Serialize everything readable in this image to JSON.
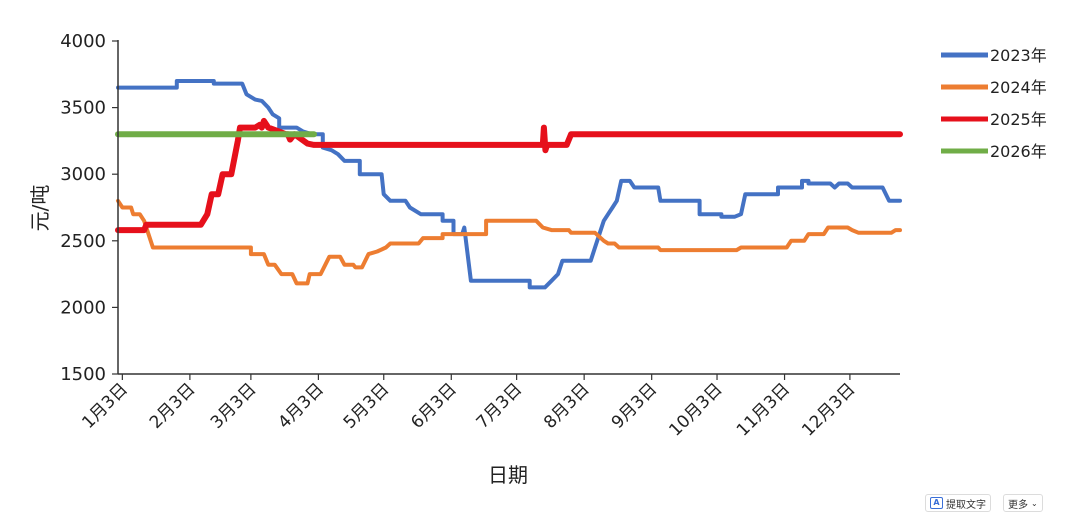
{
  "chart_data": {
    "type": "line",
    "title": "",
    "xlabel": "日期",
    "ylabel": "元/吨",
    "ylim": [
      1500,
      4000
    ],
    "yticks": [
      1500,
      2000,
      2500,
      3000,
      3500,
      4000
    ],
    "xlim": [
      1,
      360
    ],
    "xtick_labels": [
      "1月3日",
      "2月3日",
      "3月3日",
      "4月3日",
      "5月3日",
      "6月3日",
      "7月3日",
      "8月3日",
      "9月3日",
      "10月3日",
      "11月3日",
      "12月3日"
    ],
    "xtick_days": [
      3,
      34,
      62,
      93,
      123,
      154,
      184,
      215,
      246,
      276,
      307,
      337
    ],
    "legend_position": "right",
    "grid": false,
    "series": [
      {
        "name": "2023年",
        "color": "#4472c4",
        "points": [
          [
            1,
            3650
          ],
          [
            28,
            3650
          ],
          [
            28,
            3700
          ],
          [
            45,
            3700
          ],
          [
            45,
            3680
          ],
          [
            58,
            3680
          ],
          [
            60,
            3600
          ],
          [
            64,
            3560
          ],
          [
            67,
            3550
          ],
          [
            70,
            3500
          ],
          [
            72,
            3450
          ],
          [
            75,
            3420
          ],
          [
            75,
            3350
          ],
          [
            83,
            3350
          ],
          [
            86,
            3320
          ],
          [
            90,
            3300
          ],
          [
            95,
            3300
          ],
          [
            95,
            3200
          ],
          [
            99,
            3180
          ],
          [
            102,
            3150
          ],
          [
            105,
            3100
          ],
          [
            112,
            3100
          ],
          [
            112,
            3000
          ],
          [
            122,
            3000
          ],
          [
            123,
            2850
          ],
          [
            126,
            2800
          ],
          [
            133,
            2800
          ],
          [
            135,
            2750
          ],
          [
            140,
            2700
          ],
          [
            150,
            2700
          ],
          [
            150,
            2650
          ],
          [
            155,
            2650
          ],
          [
            155,
            2550
          ],
          [
            159,
            2550
          ],
          [
            160,
            2600
          ],
          [
            163,
            2200
          ],
          [
            190,
            2200
          ],
          [
            190,
            2150
          ],
          [
            197,
            2150
          ],
          [
            200,
            2200
          ],
          [
            203,
            2250
          ],
          [
            205,
            2350
          ],
          [
            218,
            2350
          ],
          [
            220,
            2450
          ],
          [
            222,
            2550
          ],
          [
            224,
            2650
          ],
          [
            226,
            2700
          ],
          [
            228,
            2750
          ],
          [
            230,
            2800
          ],
          [
            232,
            2950
          ],
          [
            236,
            2950
          ],
          [
            238,
            2900
          ],
          [
            249,
            2900
          ],
          [
            250,
            2800
          ],
          [
            268,
            2800
          ],
          [
            268,
            2700
          ],
          [
            278,
            2700
          ],
          [
            278,
            2680
          ],
          [
            284,
            2680
          ],
          [
            287,
            2700
          ],
          [
            289,
            2850
          ],
          [
            304,
            2850
          ],
          [
            304,
            2900
          ],
          [
            315,
            2900
          ],
          [
            315,
            2950
          ],
          [
            318,
            2950
          ],
          [
            318,
            2930
          ],
          [
            328,
            2930
          ],
          [
            330,
            2900
          ],
          [
            332,
            2930
          ],
          [
            336,
            2930
          ],
          [
            338,
            2900
          ],
          [
            352,
            2900
          ],
          [
            355,
            2800
          ],
          [
            360,
            2800
          ]
        ]
      },
      {
        "name": "2024年",
        "color": "#ed7d31",
        "points": [
          [
            1,
            2800
          ],
          [
            3,
            2750
          ],
          [
            7,
            2750
          ],
          [
            8,
            2700
          ],
          [
            11,
            2700
          ],
          [
            13,
            2650
          ],
          [
            15,
            2550
          ],
          [
            17,
            2450
          ],
          [
            62,
            2450
          ],
          [
            62,
            2400
          ],
          [
            68,
            2400
          ],
          [
            70,
            2320
          ],
          [
            73,
            2320
          ],
          [
            76,
            2250
          ],
          [
            81,
            2250
          ],
          [
            83,
            2180
          ],
          [
            88,
            2180
          ],
          [
            89,
            2250
          ],
          [
            94,
            2250
          ],
          [
            98,
            2380
          ],
          [
            103,
            2380
          ],
          [
            105,
            2320
          ],
          [
            109,
            2320
          ],
          [
            110,
            2300
          ],
          [
            113,
            2300
          ],
          [
            116,
            2400
          ],
          [
            120,
            2420
          ],
          [
            124,
            2450
          ],
          [
            126,
            2480
          ],
          [
            139,
            2480
          ],
          [
            141,
            2520
          ],
          [
            150,
            2520
          ],
          [
            150,
            2550
          ],
          [
            170,
            2550
          ],
          [
            170,
            2650
          ],
          [
            193,
            2650
          ],
          [
            196,
            2600
          ],
          [
            200,
            2580
          ],
          [
            208,
            2580
          ],
          [
            209,
            2560
          ],
          [
            220,
            2560
          ],
          [
            224,
            2500
          ],
          [
            226,
            2480
          ],
          [
            229,
            2480
          ],
          [
            231,
            2450
          ],
          [
            249,
            2450
          ],
          [
            250,
            2430
          ],
          [
            285,
            2430
          ],
          [
            287,
            2450
          ],
          [
            308,
            2450
          ],
          [
            310,
            2500
          ],
          [
            316,
            2500
          ],
          [
            318,
            2550
          ],
          [
            325,
            2550
          ],
          [
            327,
            2600
          ],
          [
            336,
            2600
          ],
          [
            338,
            2580
          ],
          [
            341,
            2560
          ],
          [
            356,
            2560
          ],
          [
            358,
            2580
          ],
          [
            360,
            2580
          ]
        ]
      },
      {
        "name": "2025年",
        "color": "#e6101b",
        "points": [
          [
            1,
            2580
          ],
          [
            13,
            2580
          ],
          [
            14,
            2620
          ],
          [
            39,
            2620
          ],
          [
            42,
            2700
          ],
          [
            44,
            2850
          ],
          [
            47,
            2850
          ],
          [
            49,
            3000
          ],
          [
            53,
            3000
          ],
          [
            56,
            3250
          ],
          [
            57,
            3350
          ],
          [
            62,
            3350
          ],
          [
            64,
            3350
          ],
          [
            66,
            3370
          ],
          [
            67,
            3350
          ],
          [
            68,
            3400
          ],
          [
            70,
            3350
          ],
          [
            75,
            3320
          ],
          [
            78,
            3300
          ],
          [
            79,
            3300
          ],
          [
            80,
            3260
          ],
          [
            82,
            3300
          ],
          [
            88,
            3230
          ],
          [
            91,
            3220
          ],
          [
            195,
            3220
          ],
          [
            196,
            3220
          ],
          [
            196.5,
            3350
          ],
          [
            197.2,
            3180
          ],
          [
            198,
            3220
          ],
          [
            207,
            3220
          ],
          [
            209,
            3300
          ],
          [
            360,
            3300
          ]
        ]
      },
      {
        "name": "2026年",
        "color": "#70ad47",
        "points": [
          [
            1,
            3300
          ],
          [
            91,
            3300
          ]
        ]
      }
    ]
  },
  "toolbar": {
    "ocr_icon": "A",
    "ocr_label": "提取文字",
    "more_label": "更多",
    "more_icon_name": "chevron-down-icon"
  }
}
